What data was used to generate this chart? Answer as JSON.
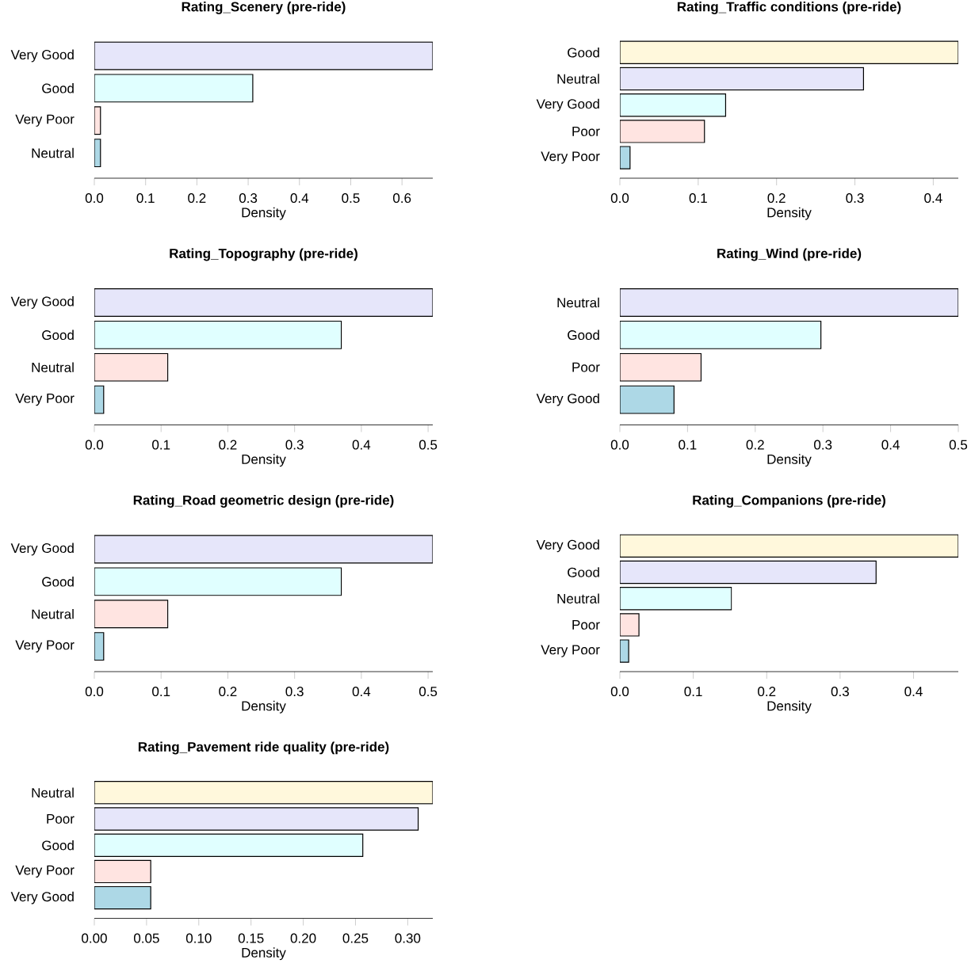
{
  "chart_data": [
    {
      "type": "bar",
      "orientation": "horizontal",
      "title": "Rating_Scenery (pre-ride)",
      "xlabel": "Density",
      "categories": [
        "Very Good",
        "Good",
        "Very Poor",
        "Neutral"
      ],
      "values": [
        0.66,
        0.309,
        0.012,
        0.012
      ],
      "colors": [
        "#e6e6fa",
        "#e0ffff",
        "#ffe4e1",
        "#add8e6"
      ],
      "xlim": [
        0,
        0.66
      ],
      "xticks": [
        {
          "value": 0,
          "label": "0.0"
        },
        0.1,
        0.2,
        0.3,
        0.4,
        0.5,
        0.6
      ]
    },
    {
      "type": "bar",
      "orientation": "horizontal",
      "title": "Rating_Traffic conditions (pre-ride)",
      "xlabel": "Density",
      "categories": [
        "Good",
        "Neutral",
        "Very Good",
        "Poor",
        "Very Poor"
      ],
      "values": [
        0.432,
        0.311,
        0.135,
        0.108,
        0.013
      ],
      "colors": [
        "#fff8dc",
        "#e6e6fa",
        "#e0ffff",
        "#ffe4e1",
        "#add8e6"
      ],
      "xlim": [
        0,
        0.432
      ],
      "xticks": [
        {
          "value": 0,
          "label": "0.0"
        },
        0.1,
        0.2,
        0.3,
        0.4
      ]
    },
    {
      "type": "bar",
      "orientation": "horizontal",
      "title": "Rating_Topography (pre-ride)",
      "xlabel": "Density",
      "categories": [
        "Very Good",
        "Good",
        "Neutral",
        "Very Poor"
      ],
      "values": [
        0.507,
        0.37,
        0.11,
        0.014
      ],
      "colors": [
        "#e6e6fa",
        "#e0ffff",
        "#ffe4e1",
        "#add8e6"
      ],
      "xlim": [
        0,
        0.507
      ],
      "xticks": [
        {
          "value": 0,
          "label": "0.0"
        },
        0.1,
        0.2,
        0.3,
        0.4,
        0.5
      ]
    },
    {
      "type": "bar",
      "orientation": "horizontal",
      "title": "Rating_Wind (pre-ride)",
      "xlabel": "Density",
      "categories": [
        "Neutral",
        "Good",
        "Poor",
        "Very Good"
      ],
      "values": [
        0.5,
        0.297,
        0.12,
        0.08
      ],
      "colors": [
        "#e6e6fa",
        "#e0ffff",
        "#ffe4e1",
        "#add8e6"
      ],
      "xlim": [
        0,
        0.5
      ],
      "xticks": [
        {
          "value": 0,
          "label": "0.0"
        },
        0.1,
        0.2,
        0.3,
        0.4,
        0.5
      ]
    },
    {
      "type": "bar",
      "orientation": "horizontal",
      "title": "Rating_Road geometric design (pre-ride)",
      "xlabel": "Density",
      "categories": [
        "Very Good",
        "Good",
        "Neutral",
        "Very Poor"
      ],
      "values": [
        0.507,
        0.37,
        0.11,
        0.014
      ],
      "colors": [
        "#e6e6fa",
        "#e0ffff",
        "#ffe4e1",
        "#add8e6"
      ],
      "xlim": [
        0,
        0.507
      ],
      "xticks": [
        {
          "value": 0,
          "label": "0.0"
        },
        0.1,
        0.2,
        0.3,
        0.4,
        0.5
      ]
    },
    {
      "type": "bar",
      "orientation": "horizontal",
      "title": "Rating_Companions (pre-ride)",
      "xlabel": "Density",
      "categories": [
        "Very Good",
        "Good",
        "Neutral",
        "Poor",
        "Very Poor"
      ],
      "values": [
        0.461,
        0.349,
        0.152,
        0.026,
        0.012
      ],
      "colors": [
        "#fff8dc",
        "#e6e6fa",
        "#e0ffff",
        "#ffe4e1",
        "#add8e6"
      ],
      "xlim": [
        0,
        0.461
      ],
      "xticks": [
        {
          "value": 0,
          "label": "0.0"
        },
        0.1,
        0.2,
        0.3,
        0.4
      ]
    },
    {
      "type": "bar",
      "orientation": "horizontal",
      "title": "Rating_Pavement ride quality (pre-ride)",
      "xlabel": "Density",
      "categories": [
        "Neutral",
        "Poor",
        "Good",
        "Very Poor",
        "Very Good"
      ],
      "values": [
        0.324,
        0.31,
        0.257,
        0.054,
        0.054
      ],
      "colors": [
        "#fff8dc",
        "#e6e6fa",
        "#e0ffff",
        "#ffe4e1",
        "#add8e6"
      ],
      "xlim": [
        0,
        0.324
      ],
      "xticks": [
        {
          "value": 0,
          "label": "0.00"
        },
        0.05,
        {
          "value": 0.1,
          "label": "0.10"
        },
        0.15,
        {
          "value": 0.2,
          "label": "0.20"
        },
        0.25,
        {
          "value": 0.3,
          "label": "0.30"
        }
      ]
    }
  ]
}
